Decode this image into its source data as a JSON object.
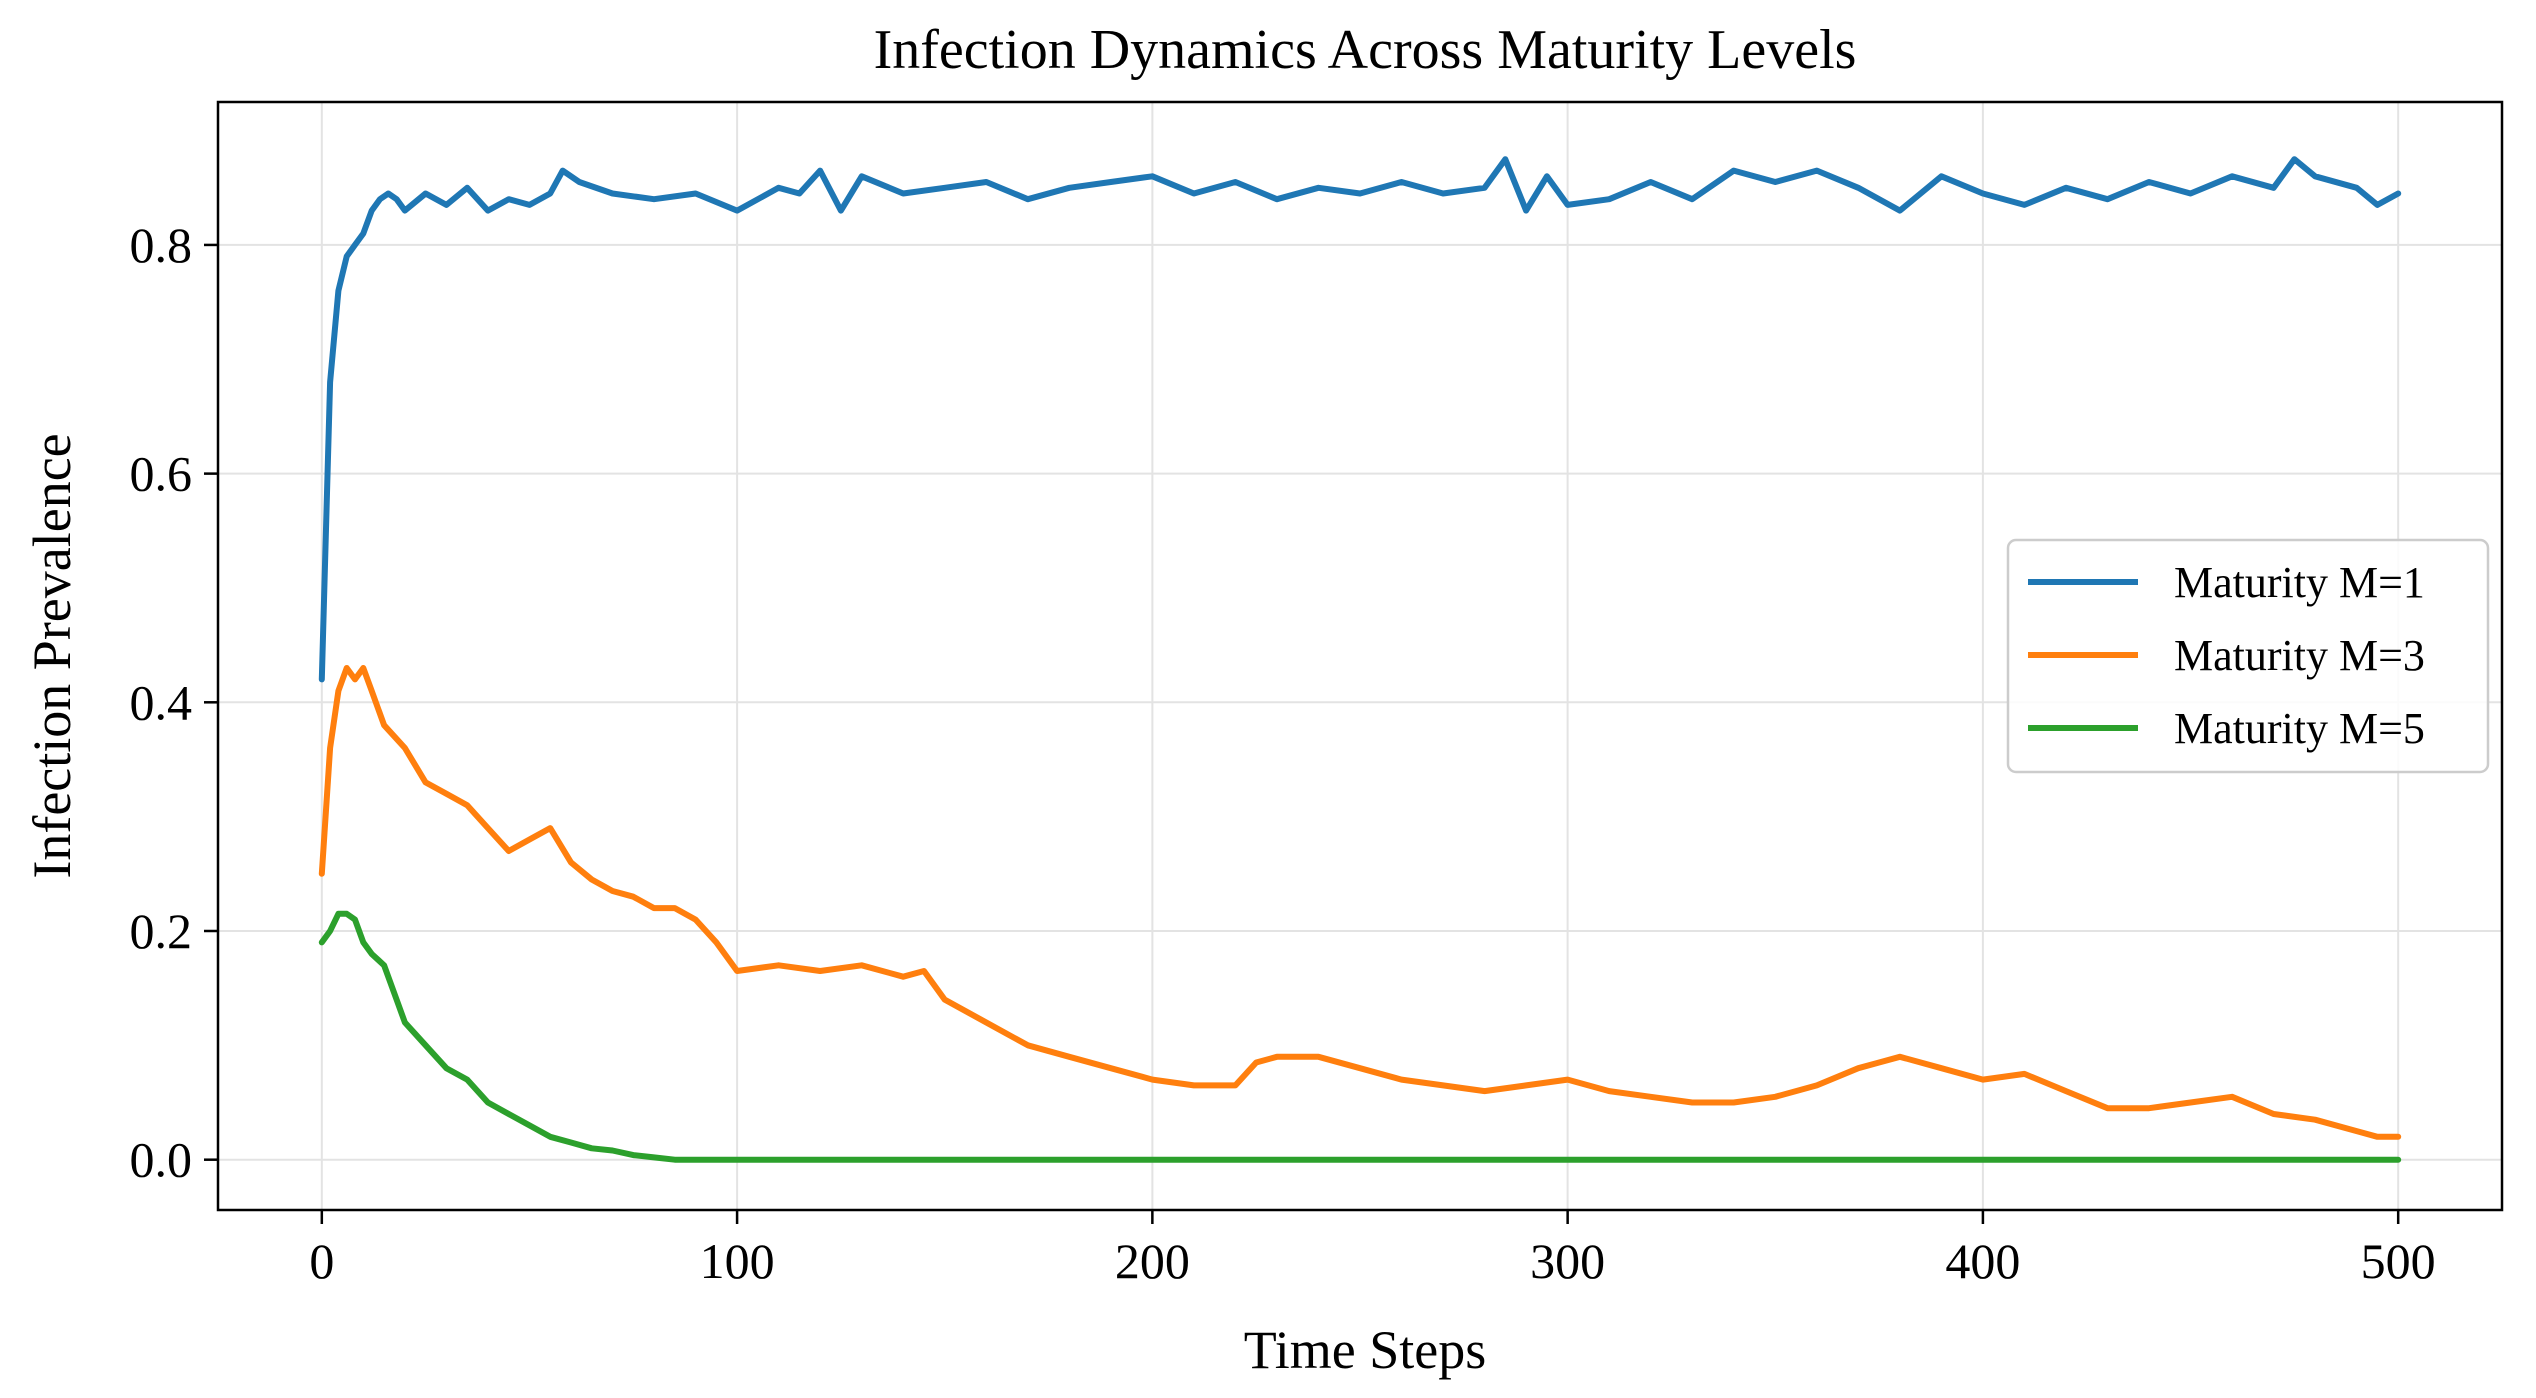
{
  "chart_data": {
    "type": "line",
    "title": "Infection Dynamics Across Maturity Levels",
    "xlabel": "Time Steps",
    "ylabel": "Infection Prevalence",
    "xlim": [
      -25,
      525
    ],
    "ylim": [
      -0.044,
      0.925
    ],
    "xticks": [
      0,
      100,
      200,
      300,
      400,
      500
    ],
    "xtick_labels": [
      "0",
      "100",
      "200",
      "300",
      "400",
      "500"
    ],
    "yticks": [
      0.0,
      0.2,
      0.4,
      0.6,
      0.8
    ],
    "ytick_labels": [
      "0.0",
      "0.2",
      "0.4",
      "0.6",
      "0.8"
    ],
    "grid": true,
    "legend_position": "center-right",
    "series": [
      {
        "name": "Maturity M=1",
        "color": "#1f77b4",
        "x": [
          0,
          2,
          4,
          6,
          8,
          10,
          12,
          14,
          16,
          18,
          20,
          25,
          30,
          35,
          40,
          45,
          50,
          55,
          58,
          62,
          70,
          80,
          90,
          100,
          110,
          115,
          120,
          125,
          130,
          140,
          150,
          160,
          170,
          180,
          190,
          200,
          210,
          220,
          230,
          240,
          250,
          260,
          270,
          280,
          285,
          290,
          295,
          300,
          310,
          320,
          330,
          340,
          350,
          360,
          370,
          380,
          390,
          400,
          410,
          420,
          430,
          440,
          450,
          460,
          470,
          475,
          480,
          490,
          495,
          500
        ],
        "y": [
          0.42,
          0.68,
          0.76,
          0.79,
          0.8,
          0.81,
          0.83,
          0.84,
          0.845,
          0.84,
          0.83,
          0.845,
          0.835,
          0.85,
          0.83,
          0.84,
          0.835,
          0.845,
          0.865,
          0.855,
          0.845,
          0.84,
          0.845,
          0.83,
          0.85,
          0.845,
          0.865,
          0.83,
          0.86,
          0.845,
          0.85,
          0.855,
          0.84,
          0.85,
          0.855,
          0.86,
          0.845,
          0.855,
          0.84,
          0.85,
          0.845,
          0.855,
          0.845,
          0.85,
          0.875,
          0.83,
          0.86,
          0.835,
          0.84,
          0.855,
          0.84,
          0.865,
          0.855,
          0.865,
          0.85,
          0.83,
          0.86,
          0.845,
          0.835,
          0.85,
          0.84,
          0.855,
          0.845,
          0.86,
          0.85,
          0.875,
          0.86,
          0.85,
          0.835,
          0.845
        ]
      },
      {
        "name": "Maturity M=3",
        "color": "#ff7f0e",
        "x": [
          0,
          2,
          4,
          6,
          8,
          10,
          12,
          15,
          20,
          25,
          30,
          35,
          40,
          45,
          50,
          55,
          60,
          65,
          70,
          75,
          80,
          85,
          90,
          95,
          100,
          110,
          120,
          130,
          140,
          145,
          150,
          160,
          170,
          180,
          190,
          200,
          210,
          220,
          225,
          230,
          240,
          250,
          260,
          270,
          280,
          290,
          300,
          310,
          320,
          330,
          340,
          350,
          360,
          370,
          375,
          380,
          390,
          400,
          410,
          420,
          430,
          440,
          450,
          460,
          470,
          480,
          490,
          495,
          500
        ],
        "y": [
          0.25,
          0.36,
          0.41,
          0.43,
          0.42,
          0.43,
          0.41,
          0.38,
          0.36,
          0.33,
          0.32,
          0.31,
          0.29,
          0.27,
          0.28,
          0.29,
          0.26,
          0.245,
          0.235,
          0.23,
          0.22,
          0.22,
          0.21,
          0.19,
          0.165,
          0.17,
          0.165,
          0.17,
          0.16,
          0.165,
          0.14,
          0.12,
          0.1,
          0.09,
          0.08,
          0.07,
          0.065,
          0.065,
          0.085,
          0.09,
          0.09,
          0.08,
          0.07,
          0.065,
          0.06,
          0.065,
          0.07,
          0.06,
          0.055,
          0.05,
          0.05,
          0.055,
          0.065,
          0.08,
          0.085,
          0.09,
          0.08,
          0.07,
          0.075,
          0.06,
          0.045,
          0.045,
          0.05,
          0.055,
          0.04,
          0.035,
          0.025,
          0.02,
          0.02
        ]
      },
      {
        "name": "Maturity M=5",
        "color": "#2ca02c",
        "x": [
          0,
          2,
          4,
          6,
          8,
          10,
          12,
          15,
          18,
          20,
          25,
          30,
          35,
          40,
          45,
          50,
          55,
          60,
          65,
          70,
          75,
          80,
          85,
          100,
          200,
          300,
          400,
          500
        ],
        "y": [
          0.19,
          0.2,
          0.215,
          0.215,
          0.21,
          0.19,
          0.18,
          0.17,
          0.14,
          0.12,
          0.1,
          0.08,
          0.07,
          0.05,
          0.04,
          0.03,
          0.02,
          0.015,
          0.01,
          0.008,
          0.004,
          0.002,
          0.0,
          0.0,
          0.0,
          0.0,
          0.0,
          0.0
        ]
      }
    ]
  }
}
